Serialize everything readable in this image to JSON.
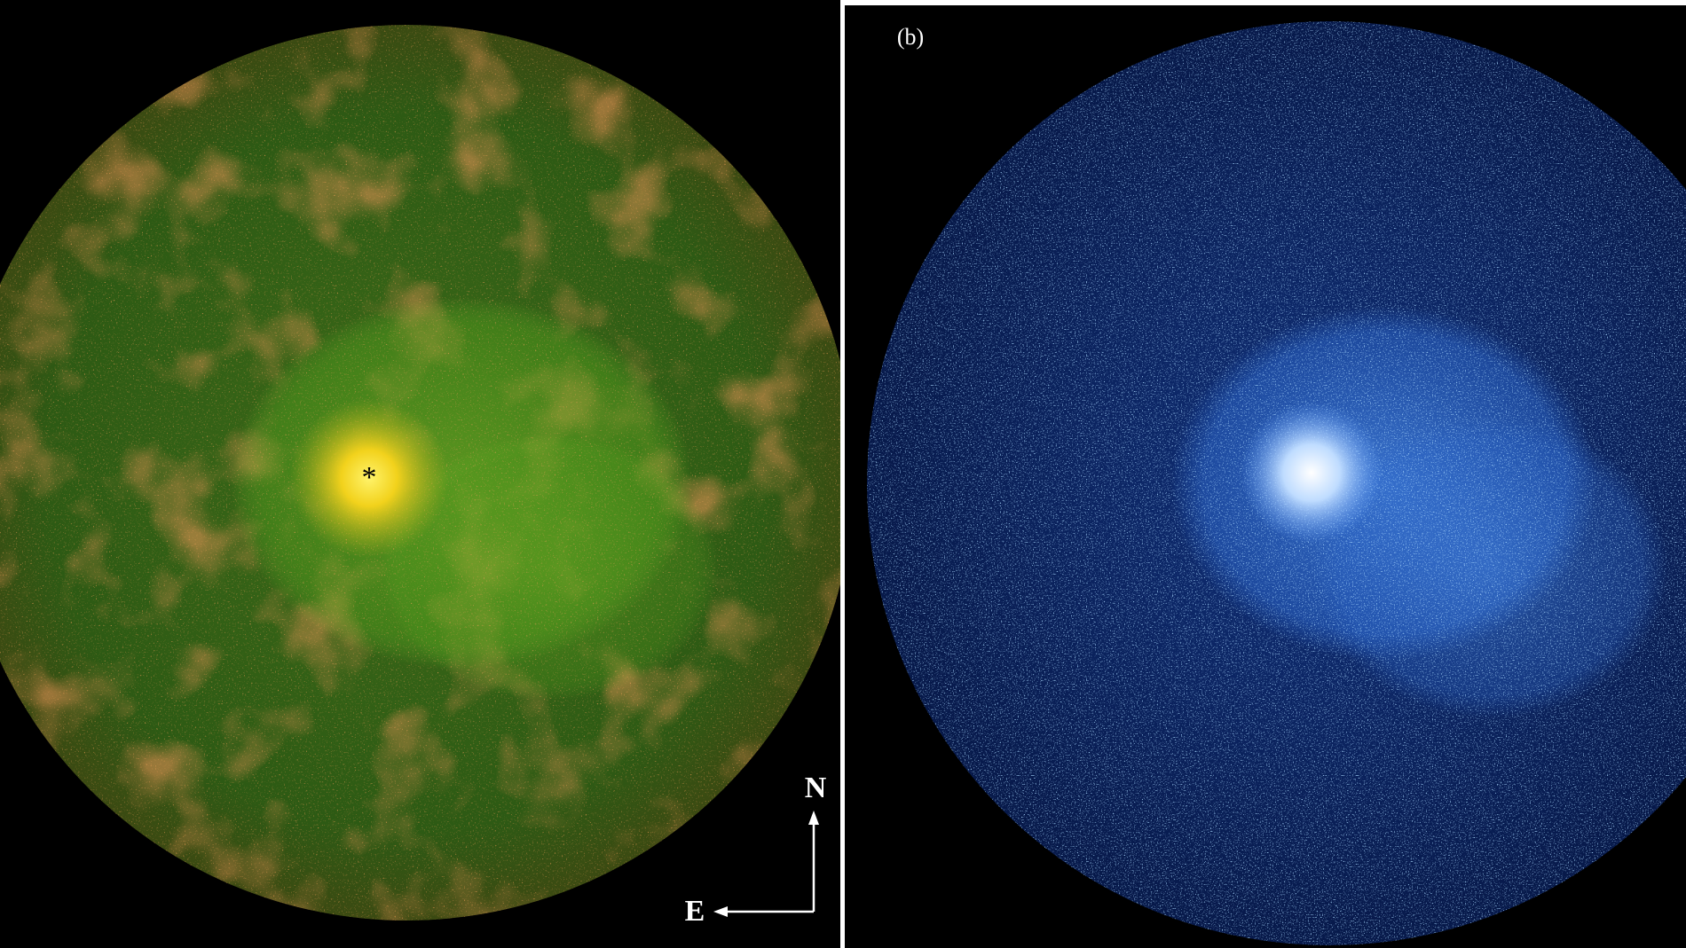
{
  "panels": [
    {
      "star_marker": "*",
      "compass": {
        "north": "N",
        "east": "E"
      }
    },
    {
      "label": "(b)"
    }
  ]
}
